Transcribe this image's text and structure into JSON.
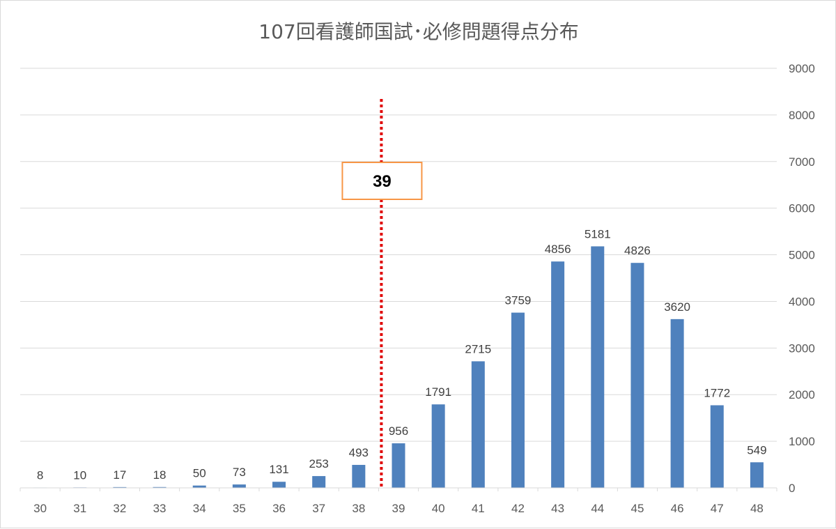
{
  "chart_data": {
    "type": "bar",
    "title": "107回看護師国試･必修問題得点分布",
    "categories": [
      "30",
      "31",
      "32",
      "33",
      "34",
      "35",
      "36",
      "37",
      "38",
      "39",
      "40",
      "41",
      "42",
      "43",
      "44",
      "45",
      "46",
      "47",
      "48"
    ],
    "values": [
      8,
      10,
      17,
      18,
      50,
      73,
      131,
      253,
      493,
      956,
      1791,
      2715,
      3759,
      4856,
      5181,
      4826,
      3620,
      1772,
      549
    ],
    "y_axis_position": "right",
    "ylim": [
      0,
      9000
    ],
    "yticks": [
      0,
      1000,
      2000,
      3000,
      4000,
      5000,
      6000,
      7000,
      8000,
      9000
    ],
    "grid": true,
    "data_labels": true,
    "bar_color": "#4f81bd",
    "cutoff": {
      "category": "39",
      "label": "39",
      "line_color": "#e00000",
      "line_style": "dotted",
      "box_border_color": "#f79646"
    }
  }
}
